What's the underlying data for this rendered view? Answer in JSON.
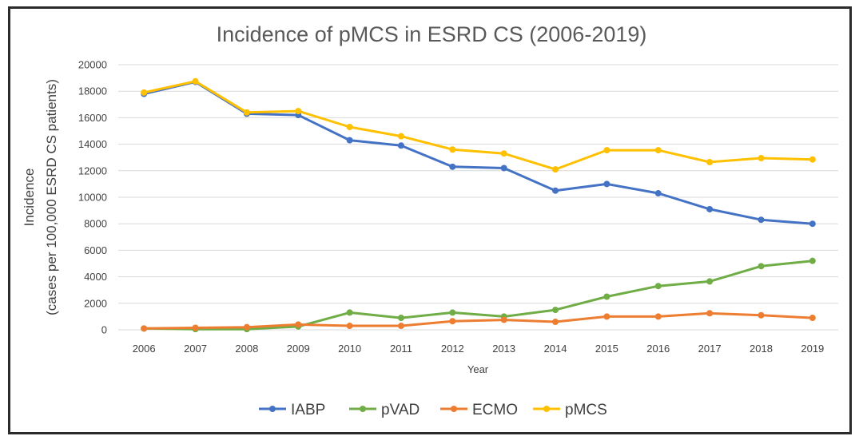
{
  "chart_data": {
    "type": "line",
    "title": "Incidence of pMCS in ESRD CS (2006-2019)",
    "xlabel": "Year",
    "ylabel_lines": [
      "Incidence",
      "(cases per 100,000 ESRD CS patients)"
    ],
    "x": [
      "2006",
      "2007",
      "2008",
      "2009",
      "2010",
      "2011",
      "2012",
      "2013",
      "2014",
      "2015",
      "2016",
      "2017",
      "2018",
      "2019"
    ],
    "ylim": [
      0,
      20000
    ],
    "yticks": [
      0,
      2000,
      4000,
      6000,
      8000,
      10000,
      12000,
      14000,
      16000,
      18000,
      20000
    ],
    "grid": true,
    "legend_position": "bottom",
    "series": [
      {
        "name": "IABP",
        "color": "#4472c4",
        "values": [
          17800,
          18700,
          16300,
          16200,
          14300,
          13900,
          12300,
          12200,
          10500,
          11000,
          10300,
          9100,
          8300,
          8000
        ]
      },
      {
        "name": "pVAD",
        "color": "#70ad47",
        "values": [
          100,
          50,
          50,
          250,
          1300,
          900,
          1300,
          1000,
          1500,
          2500,
          3300,
          3650,
          4800,
          5200
        ]
      },
      {
        "name": "ECMO",
        "color": "#ed7d31",
        "values": [
          100,
          150,
          200,
          400,
          300,
          300,
          650,
          750,
          600,
          1000,
          1000,
          1250,
          1100,
          900
        ]
      },
      {
        "name": "pMCS",
        "color": "#ffc000",
        "values": [
          17900,
          18750,
          16400,
          16500,
          15300,
          14600,
          13600,
          13300,
          12100,
          13550,
          13550,
          12650,
          12950,
          12850
        ]
      }
    ]
  }
}
